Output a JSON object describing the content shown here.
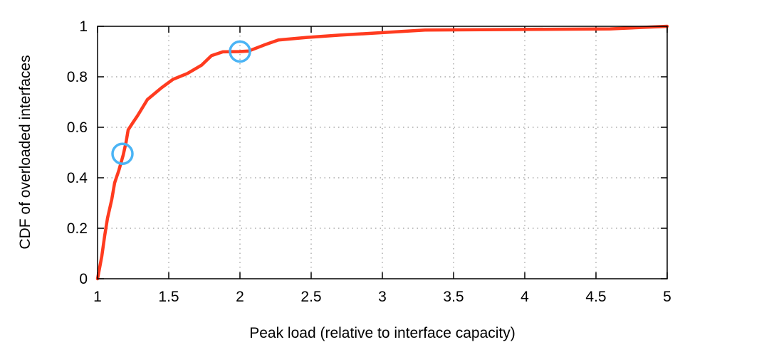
{
  "chart_data": {
    "type": "line",
    "title": "",
    "xlabel": "Peak load (relative to interface capacity)",
    "ylabel": "CDF of overloaded interfaces",
    "xlim": [
      1,
      5
    ],
    "ylim": [
      0,
      1
    ],
    "xticks": [
      1,
      1.5,
      2,
      2.5,
      3,
      3.5,
      4,
      4.5,
      5
    ],
    "xtick_labels": [
      "1",
      "1.5",
      "2",
      "2.5",
      "3",
      "3.5",
      "4",
      "4.5",
      "5"
    ],
    "yticks": [
      0,
      0.2,
      0.4,
      0.6,
      0.8,
      1
    ],
    "ytick_labels": [
      "0",
      "0.2",
      "0.4",
      "0.6",
      "0.8",
      "1"
    ],
    "grid": true,
    "grid_style": "dotted",
    "legend": "none",
    "series": [
      {
        "color": "#ff3b1f",
        "x": [
          1.0,
          1.01,
          1.03,
          1.05,
          1.07,
          1.1,
          1.12,
          1.15,
          1.18,
          1.2,
          1.215,
          1.25,
          1.28,
          1.35,
          1.45,
          1.53,
          1.63,
          1.73,
          1.8,
          1.88,
          2.0,
          2.06,
          2.17,
          2.27,
          2.47,
          2.7,
          3.0,
          3.3,
          3.8,
          4.6,
          5.0
        ],
        "y": [
          0.0,
          0.03,
          0.09,
          0.17,
          0.24,
          0.315,
          0.38,
          0.43,
          0.49,
          0.54,
          0.59,
          0.62,
          0.645,
          0.71,
          0.757,
          0.79,
          0.813,
          0.846,
          0.884,
          0.899,
          0.9,
          0.902,
          0.926,
          0.946,
          0.956,
          0.965,
          0.975,
          0.985,
          0.987,
          0.99,
          1.0
        ]
      }
    ],
    "annotations": [
      {
        "type": "circle",
        "x": 1.175,
        "y": 0.495,
        "color": "#4ab4f5"
      },
      {
        "type": "circle",
        "x": 2.0,
        "y": 0.9,
        "color": "#4ab4f5"
      }
    ]
  }
}
